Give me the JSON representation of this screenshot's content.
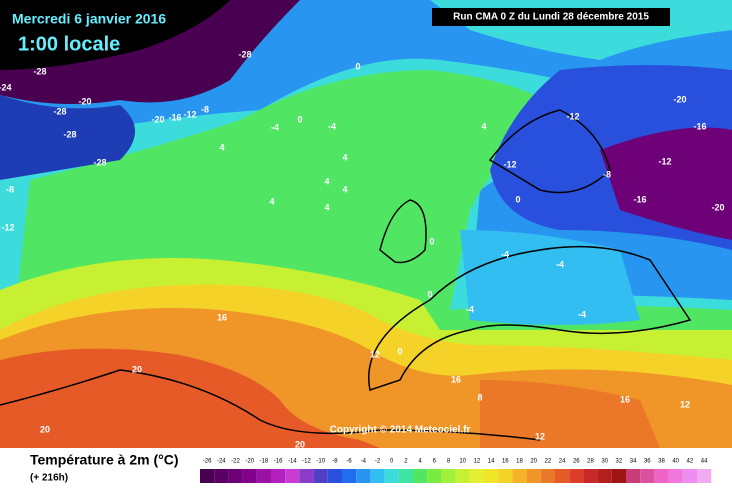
{
  "header": {
    "date": "Mercredi 6 janvier 2016",
    "time": "1:00 locale",
    "run": "Run CMA 0 Z du Lundi 28 décembre 2015"
  },
  "legend": {
    "title": "Température à 2m (°C)",
    "lead": "(+ 216h)",
    "ticks": [
      -26,
      -24,
      -22,
      -20,
      -18,
      -16,
      -14,
      -12,
      -10,
      -8,
      -6,
      -4,
      -2,
      0,
      2,
      4,
      6,
      8,
      10,
      12,
      14,
      16,
      18,
      20,
      22,
      24,
      26,
      28,
      30,
      32,
      34,
      36,
      38,
      40,
      42,
      44
    ],
    "colors": [
      "#4a0050",
      "#5a0064",
      "#6e0078",
      "#82008c",
      "#9b10a5",
      "#b420be",
      "#c83cd2",
      "#8c3cc8",
      "#5040c8",
      "#2850dc",
      "#1e6ef0",
      "#2896f0",
      "#32bef0",
      "#3cdcdc",
      "#3ce6a0",
      "#50e664",
      "#78ec3c",
      "#a0f03c",
      "#c8f032",
      "#e6f032",
      "#f0e628",
      "#f5d228",
      "#f5b428",
      "#f09628",
      "#eb7828",
      "#e65a28",
      "#dc3c28",
      "#c82828",
      "#b41e1e",
      "#a01414",
      "#c83c78",
      "#dc50a0",
      "#f064c8",
      "#f078dc",
      "#f08cf0",
      "#f0aaf0"
    ]
  },
  "copyright": "Copyright © 2014 Meteociel.fr",
  "contour_labels": [
    -28,
    -28,
    -24,
    -28,
    -20,
    -28,
    -28,
    -20,
    -16,
    -12,
    -8,
    0,
    4,
    -4,
    0,
    -4,
    4,
    4,
    4,
    4,
    4,
    4,
    0,
    -12,
    -12,
    -8,
    -12,
    -16,
    -20,
    -4,
    -4,
    -4,
    -4,
    0,
    16,
    20,
    12,
    0,
    8,
    16,
    12,
    20,
    20,
    16,
    12,
    -8,
    -12,
    -20,
    -16,
    0
  ]
}
